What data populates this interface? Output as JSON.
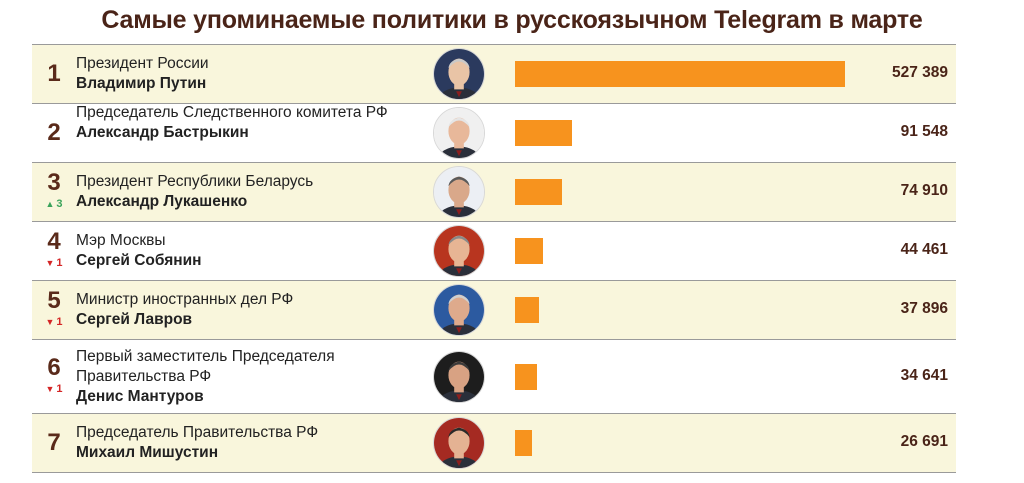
{
  "title": "Самые упоминаемые политики в русскоязычном Telegram в марте",
  "colors": {
    "bar": "#f7931e",
    "up": "#3aa35a",
    "down": "#d42525",
    "title": "#4a2418"
  },
  "chart_data": {
    "type": "bar",
    "orientation": "horizontal",
    "max_value": 527389,
    "rows": [
      {
        "rank": "1",
        "change": "",
        "direction": "",
        "role": "Президент России",
        "name": "Владимир Путин",
        "value": 527389,
        "value_label": "527 389",
        "tone": [
          "#2b3a5e",
          "#e9c4a6",
          "#c9c9c9"
        ]
      },
      {
        "rank": "2",
        "change": "",
        "direction": "",
        "role": "Председатель Следственного комитета РФ",
        "name": "Александр Бастрыкин",
        "value": 91548,
        "value_label": "91 548",
        "tone": [
          "#f0f0f0",
          "#e8b89a",
          "#e5e5e5"
        ]
      },
      {
        "rank": "3",
        "change": "3",
        "direction": "up",
        "role": "Президент Республики Беларусь",
        "name": "Александр Лукашенко",
        "value": 74910,
        "value_label": "74 910",
        "tone": [
          "#eceff4",
          "#d9a88a",
          "#5a5a5a"
        ]
      },
      {
        "rank": "4",
        "change": "1",
        "direction": "down",
        "role": "Мэр Москвы",
        "name": "Сергей Собянин",
        "value": 44461,
        "value_label": "44 461",
        "tone": [
          "#b8351f",
          "#e7b594",
          "#8a8a8a"
        ]
      },
      {
        "rank": "5",
        "change": "1",
        "direction": "down",
        "role": "Министр иностранных дел РФ",
        "name": "Сергей Лавров",
        "value": 37896,
        "value_label": "37 896",
        "tone": [
          "#2c5aa0",
          "#deaa8c",
          "#cfcfcf"
        ]
      },
      {
        "rank": "6",
        "change": "1",
        "direction": "down",
        "role": "Первый заместитель Председателя Правительства РФ",
        "name": "Денис Мантуров",
        "value": 34641,
        "value_label": "34 641",
        "tone": [
          "#1d1d1d",
          "#d8a283",
          "#3a3a3a"
        ]
      },
      {
        "rank": "7",
        "change": "",
        "direction": "",
        "role": "Председатель Правительства РФ",
        "name": "Михаил Мишустин",
        "value": 26691,
        "value_label": "26 691",
        "tone": [
          "#a52a22",
          "#e4b293",
          "#2a2a2a"
        ]
      }
    ]
  }
}
